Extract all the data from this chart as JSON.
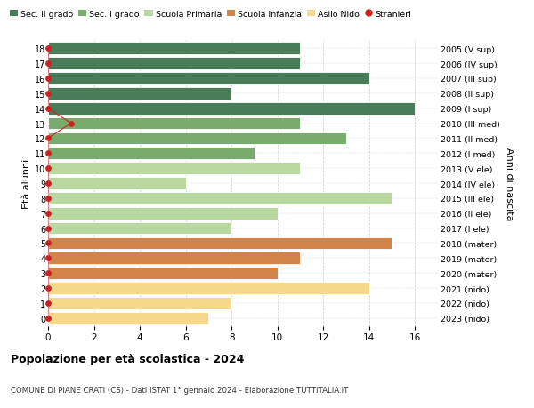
{
  "ages": [
    18,
    17,
    16,
    15,
    14,
    13,
    12,
    11,
    10,
    9,
    8,
    7,
    6,
    5,
    4,
    3,
    2,
    1,
    0
  ],
  "years": [
    "2005 (V sup)",
    "2006 (IV sup)",
    "2007 (III sup)",
    "2008 (II sup)",
    "2009 (I sup)",
    "2010 (III med)",
    "2011 (II med)",
    "2012 (I med)",
    "2013 (V ele)",
    "2014 (IV ele)",
    "2015 (III ele)",
    "2016 (II ele)",
    "2017 (I ele)",
    "2018 (mater)",
    "2019 (mater)",
    "2020 (mater)",
    "2021 (nido)",
    "2022 (nido)",
    "2023 (nido)"
  ],
  "values": [
    11,
    11,
    14,
    8,
    16,
    11,
    13,
    9,
    11,
    6,
    15,
    10,
    8,
    15,
    11,
    10,
    14,
    8,
    7
  ],
  "stranieri_x": [
    0,
    0,
    0,
    0,
    0,
    1,
    0,
    0,
    0,
    0,
    0,
    0,
    0,
    0,
    0,
    0,
    0,
    0,
    0
  ],
  "bar_colors": [
    "#4a7c59",
    "#4a7c59",
    "#4a7c59",
    "#4a7c59",
    "#4a7c59",
    "#7aab6e",
    "#7aab6e",
    "#7aab6e",
    "#b8d8a0",
    "#b8d8a0",
    "#b8d8a0",
    "#b8d8a0",
    "#b8d8a0",
    "#d2844a",
    "#d2844a",
    "#d2844a",
    "#f5d88a",
    "#f5d88a",
    "#f5d88a"
  ],
  "legend_labels": [
    "Sec. II grado",
    "Sec. I grado",
    "Scuola Primaria",
    "Scuola Infanzia",
    "Asilo Nido",
    "Stranieri"
  ],
  "legend_colors": [
    "#4a7c59",
    "#7aab6e",
    "#b8d8a0",
    "#d2844a",
    "#f5d88a",
    "#cc2222"
  ],
  "title": "Popolazione per età scolastica - 2024",
  "subtitle": "COMUNE DI PIANE CRATI (CS) - Dati ISTAT 1° gennaio 2024 - Elaborazione TUTTITALIA.IT",
  "ylabel": "Età alunni",
  "ylabel_right": "Anni di nascita",
  "xlim": [
    0,
    17
  ],
  "ylim": [
    -0.55,
    18.55
  ],
  "xticks": [
    0,
    2,
    4,
    6,
    8,
    10,
    12,
    14,
    16
  ],
  "grid_color": "#cccccc",
  "stranieri_color": "#cc2222",
  "bar_height": 0.82
}
